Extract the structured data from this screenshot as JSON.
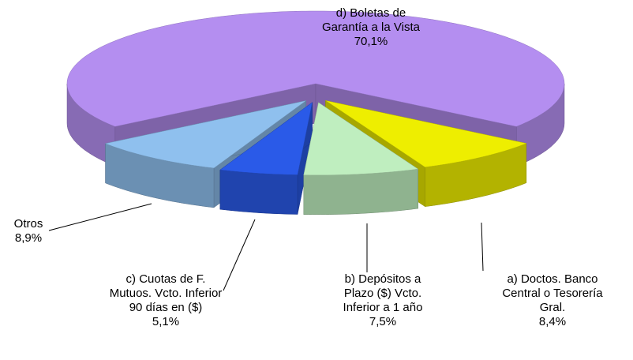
{
  "chart_data": {
    "type": "pie",
    "categories": [
      "d) Boletas de Garantía a la Vista",
      "a) Doctos. Banco Central o Tesorería Gral.",
      "b) Depósitos a Plazo ($) Vcto. Inferior a 1 año",
      "c) Cuotas de F. Mutuos. Vcto. Inferior 90 días en ($)",
      "Otros"
    ],
    "values": [
      70.1,
      8.4,
      7.5,
      5.1,
      8.9
    ],
    "value_labels": [
      "70,1%",
      "8,4%",
      "7,5%",
      "5,1%",
      "8,9%"
    ],
    "colors": [
      "#b48ef0",
      "#eeee00",
      "#bfeebf",
      "#2a5ae8",
      "#8fc0ee"
    ]
  }
}
